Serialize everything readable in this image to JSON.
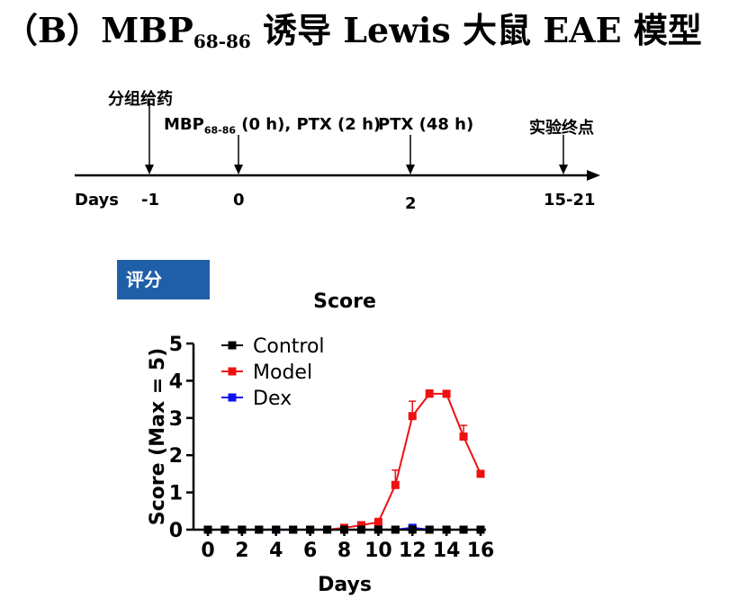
{
  "header": {
    "title_prefix": "（B）MBP",
    "title_sub": "68-86",
    "title_suffix": " 诱导 Lewis 大鼠 EAE 模型"
  },
  "timeline": {
    "axis_label": "Days",
    "ticks": [
      {
        "day": "-1",
        "label": "分组给药"
      },
      {
        "day": "0",
        "label_prefix": "MBP",
        "label_sub": "68-86",
        "label_suffix": " (0 h), PTX (2 h)"
      },
      {
        "day": "2",
        "label": "PTX (48 h)"
      },
      {
        "day": "15-21",
        "label": "实验终点"
      }
    ]
  },
  "badge": {
    "label": "评分"
  },
  "chart_data": {
    "type": "line",
    "title": "Score",
    "xlabel": "Days",
    "ylabel": "Score (Max = 5)",
    "xlim": [
      0,
      16
    ],
    "ylim": [
      0,
      5
    ],
    "xticks": [
      0,
      2,
      4,
      6,
      8,
      10,
      12,
      14,
      16
    ],
    "yticks": [
      0,
      1,
      2,
      3,
      4,
      5
    ],
    "legend": "top-left",
    "x": [
      0,
      1,
      2,
      3,
      4,
      5,
      6,
      7,
      8,
      9,
      10,
      11,
      12,
      13,
      14,
      15,
      16
    ],
    "series": [
      {
        "name": "Control",
        "color": "#000000",
        "values": [
          0,
          0,
          0,
          0,
          0,
          0,
          0,
          0,
          0,
          0,
          0,
          0,
          0,
          0,
          0,
          0,
          0
        ]
      },
      {
        "name": "Model",
        "color": "#ee1111",
        "values": [
          0,
          0,
          0,
          0,
          0,
          0,
          0,
          0,
          0.05,
          0.12,
          0.2,
          1.2,
          3.05,
          3.65,
          3.65,
          2.5,
          1.5
        ],
        "errors": [
          0,
          0,
          0,
          0,
          0,
          0,
          0,
          0,
          0,
          0.05,
          0.1,
          0.4,
          0.4,
          0.1,
          0,
          0.3,
          0
        ]
      },
      {
        "name": "Dex",
        "color": "#1111ee",
        "values": [
          0,
          0,
          0,
          0,
          0,
          0,
          0,
          0,
          0,
          0,
          0,
          0,
          0.05,
          0,
          0,
          0,
          0
        ]
      }
    ]
  }
}
